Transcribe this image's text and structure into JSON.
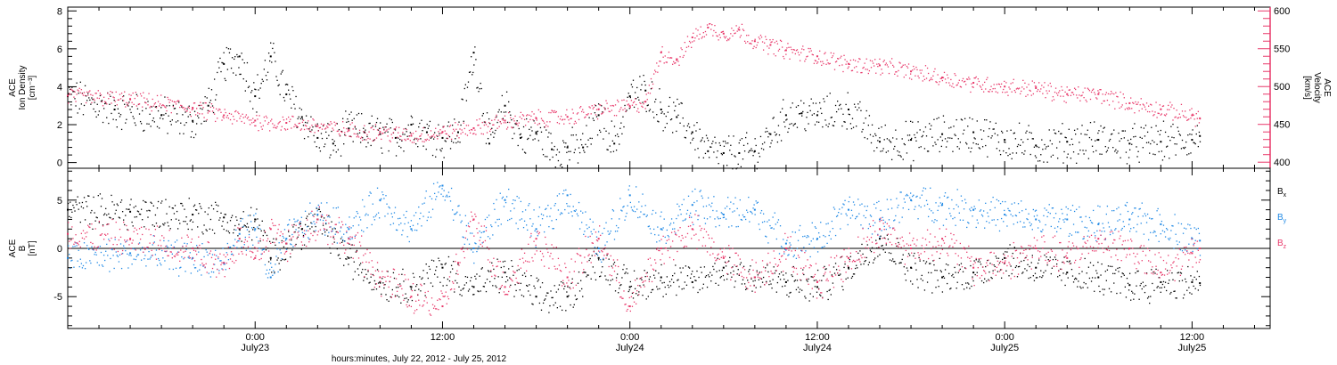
{
  "chart_data": {
    "type": "scatter",
    "xlabel": "hours:minutes, July 22, 2012 - July 25, 2012",
    "x_ticks": [
      {
        "t": 12,
        "time": "0:00",
        "date": "July23"
      },
      {
        "t": 24,
        "time": "12:00",
        "date": ""
      },
      {
        "t": 36,
        "time": "0:00",
        "date": "July24"
      },
      {
        "t": 48,
        "time": "12:00",
        "date": "July24"
      },
      {
        "t": 60,
        "time": "0:00",
        "date": "July25"
      },
      {
        "t": 72,
        "time": "12:00",
        "date": "July25"
      }
    ],
    "xlim_hours_since_jul22_12utc": [
      0,
      77
    ],
    "panels": [
      {
        "id": "density-velocity",
        "left_axis": {
          "label": [
            "ACE",
            "Ion Density",
            "[cm⁻³]"
          ],
          "ylim": [
            -0.3,
            8.2
          ],
          "ticks": [
            0,
            2,
            4,
            6,
            8
          ],
          "color": "#000000"
        },
        "right_axis": {
          "label": [
            "ACE",
            "Velocity",
            "[km/s]"
          ],
          "ylim": [
            392,
            605
          ],
          "ticks": [
            400,
            450,
            500,
            550,
            600
          ],
          "color": "#e8386a"
        },
        "series": [
          {
            "axis": "left",
            "color": "#000000",
            "x": [
              0,
              3,
              6,
              8,
              9,
              10,
              11,
              12,
              13,
              14,
              15,
              16,
              17,
              18,
              19,
              20,
              21,
              22,
              23,
              24,
              25,
              26,
              27,
              28,
              29,
              30,
              31,
              32,
              33,
              34,
              35,
              36,
              37,
              38,
              39,
              40,
              41,
              42,
              43,
              44,
              45,
              46,
              47,
              48,
              50,
              52,
              54,
              56,
              58,
              60,
              62,
              64,
              66,
              68,
              70,
              72,
              72.5
            ],
            "y": [
              3.5,
              2.8,
              2.5,
              2.2,
              3.0,
              5.2,
              5.6,
              3.5,
              5.6,
              3.6,
              2.4,
              1.3,
              1.0,
              1.8,
              1.6,
              1.5,
              1.3,
              2.0,
              1.6,
              1.3,
              1.6,
              5.8,
              1.0,
              3.0,
              1.3,
              1.6,
              0.7,
              0.8,
              0.8,
              2.5,
              1.0,
              3.5,
              3.8,
              2.8,
              2.4,
              1.6,
              0.6,
              0.5,
              0.5,
              0.6,
              1.5,
              2.5,
              2.6,
              2.5,
              2.8,
              1.1,
              1.2,
              1.5,
              1.6,
              1.2,
              0.9,
              1.1,
              1.2,
              1.0,
              1.1,
              1.2,
              1.4
            ]
          },
          {
            "axis": "right",
            "color": "#e8386a",
            "x": [
              0,
              4,
              8,
              10,
              12,
              14,
              16,
              18,
              20,
              22,
              24,
              26,
              28,
              30,
              32,
              34,
              36,
              37,
              38,
              39,
              40,
              41,
              42,
              43,
              44,
              45,
              46,
              48,
              50,
              52,
              54,
              56,
              58,
              60,
              62,
              64,
              66,
              68,
              70,
              72,
              72.5
            ],
            "y": [
              488,
              483,
              472,
              462,
              455,
              452,
              448,
              442,
              440,
              435,
              440,
              445,
              455,
              458,
              460,
              470,
              474,
              480,
              545,
              535,
              565,
              578,
              570,
              575,
              560,
              555,
              548,
              540,
              530,
              528,
              520,
              512,
              505,
              500,
              498,
              490,
              490,
              478,
              470,
              462,
              458
            ]
          }
        ]
      },
      {
        "id": "magnetic-field",
        "left_axis": {
          "label": [
            "ACE",
            "B",
            "[nT]"
          ],
          "ylim": [
            -8.3,
            8.3
          ],
          "ticks": [
            -5,
            0,
            5
          ],
          "color": "#000000"
        },
        "zero_line": true,
        "legend": [
          {
            "label": "B",
            "sub": "x",
            "color": "#000000"
          },
          {
            "label": "B",
            "sub": "y",
            "color": "#1e88e5"
          },
          {
            "label": "B",
            "sub": "z",
            "color": "#e8386a"
          }
        ],
        "series": [
          {
            "name": "Bx",
            "color": "#000000",
            "x": [
              0,
              4,
              8,
              10,
              11,
              12,
              13,
              14,
              15,
              16,
              18,
              20,
              22,
              24,
              26,
              28,
              30,
              32,
              34,
              36,
              38,
              40,
              42,
              44,
              46,
              48,
              50,
              52,
              54,
              56,
              58,
              60,
              62,
              64,
              66,
              68,
              70,
              72,
              72.5
            ],
            "y": [
              4.0,
              3.8,
              3.5,
              3.2,
              2.0,
              3.0,
              -1.0,
              0.5,
              2.0,
              3.0,
              -1.0,
              -3.5,
              -4.0,
              -2.0,
              -4.0,
              -2.5,
              -5.0,
              -5.0,
              -1.0,
              -4.0,
              -3.0,
              -3.5,
              -2.0,
              -3.0,
              -3.5,
              -4.0,
              -2.0,
              1.0,
              -2.0,
              -3.0,
              -2.5,
              -1.0,
              -2.0,
              -2.5,
              -3.0,
              -3.8,
              -3.5,
              -3.5,
              -3.6
            ]
          },
          {
            "name": "By",
            "color": "#1e88e5",
            "x": [
              0,
              4,
              8,
              10,
              11,
              12,
              13,
              14,
              16,
              18,
              20,
              22,
              24,
              26,
              28,
              30,
              32,
              34,
              36,
              38,
              40,
              42,
              44,
              46,
              48,
              50,
              52,
              54,
              56,
              58,
              60,
              62,
              64,
              66,
              68,
              70,
              72,
              72.5
            ],
            "y": [
              -1.0,
              -0.5,
              -1.0,
              -1.5,
              1.5,
              2.0,
              -3.0,
              1.0,
              3.5,
              2.0,
              5.0,
              2.0,
              6.5,
              0.0,
              5.0,
              2.0,
              5.5,
              0.0,
              5.5,
              2.0,
              4.5,
              3.5,
              4.0,
              0.5,
              1.0,
              4.0,
              3.0,
              5.0,
              4.5,
              4.0,
              3.5,
              3.0,
              3.0,
              2.5,
              3.0,
              2.5,
              1.0,
              0.8
            ]
          },
          {
            "name": "Bz",
            "color": "#e8386a",
            "x": [
              0,
              4,
              8,
              10,
              11,
              12,
              13,
              14,
              16,
              18,
              20,
              22,
              24,
              25,
              26,
              28,
              30,
              32,
              34,
              36,
              38,
              40,
              42,
              44,
              46,
              48,
              50,
              52,
              54,
              56,
              58,
              60,
              62,
              64,
              66,
              68,
              70,
              72,
              72.5
            ],
            "y": [
              1.5,
              1.0,
              0.0,
              -1.5,
              1.0,
              -1.0,
              2.0,
              0.5,
              3.0,
              1.0,
              -3.0,
              -5.0,
              -6.0,
              -1.5,
              3.0,
              -4.0,
              1.0,
              -3.0,
              1.0,
              -6.0,
              0.0,
              2.0,
              -1.0,
              -3.0,
              0.0,
              -3.5,
              -1.0,
              2.0,
              0.0,
              1.0,
              -2.0,
              -1.5,
              0.0,
              -1.0,
              1.0,
              0.0,
              -2.5,
              -0.5,
              0.0
            ]
          }
        ]
      }
    ]
  }
}
